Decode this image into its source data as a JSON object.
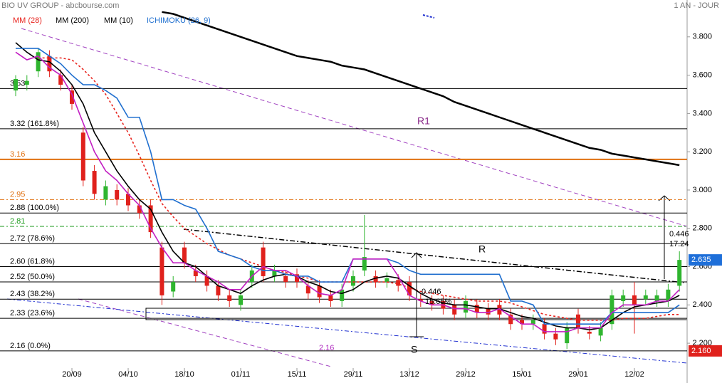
{
  "chart_data": {
    "type": "candlestick",
    "title": "BIO UV GROUP - abcbourse.com",
    "subtitle": "1 AN - JOUR",
    "categories": [
      null,
      null,
      null,
      null,
      null,
      "20/09",
      null,
      null,
      null,
      null,
      "04/10",
      null,
      null,
      null,
      null,
      "18/10",
      null,
      null,
      null,
      null,
      "01/11",
      null,
      null,
      null,
      null,
      "15/11",
      null,
      null,
      null,
      null,
      "29/11",
      null,
      null,
      null,
      null,
      "13/12",
      null,
      null,
      null,
      null,
      "29/12",
      null,
      null,
      null,
      null,
      "15/01",
      null,
      null,
      null,
      null,
      "29/01",
      null,
      null,
      null,
      null,
      "12/02",
      null,
      null,
      null,
      null
    ],
    "open": [
      3.52,
      3.55,
      3.62,
      3.7,
      3.6,
      3.52,
      3.3,
      3.1,
      2.95,
      3.0,
      2.98,
      2.92,
      2.92,
      2.7,
      2.47,
      2.7,
      2.58,
      2.55,
      2.5,
      2.45,
      2.4,
      2.52,
      2.7,
      2.55,
      2.55,
      2.56,
      2.5,
      2.5,
      2.45,
      2.42,
      2.5,
      2.58,
      2.55,
      2.52,
      2.53,
      2.52,
      2.43,
      2.42,
      2.42,
      2.4,
      2.36,
      2.4,
      2.38,
      2.4,
      2.35,
      2.32,
      2.3,
      2.3,
      2.25,
      2.2,
      2.35,
      2.26,
      2.24,
      2.3,
      2.42,
      2.45,
      2.43,
      2.42,
      2.42,
      2.5
    ],
    "high": [
      3.6,
      3.6,
      3.74,
      3.73,
      3.63,
      3.55,
      3.33,
      3.13,
      3.05,
      3.03,
      3.01,
      2.95,
      2.95,
      2.73,
      2.55,
      2.73,
      2.61,
      2.58,
      2.53,
      2.48,
      2.48,
      2.61,
      2.73,
      2.61,
      2.58,
      2.59,
      2.53,
      2.53,
      2.48,
      2.51,
      2.58,
      2.87,
      2.58,
      2.57,
      2.56,
      2.55,
      2.46,
      2.45,
      2.45,
      2.43,
      2.45,
      2.43,
      2.41,
      2.43,
      2.38,
      2.35,
      2.35,
      2.33,
      2.28,
      2.31,
      2.38,
      2.29,
      2.31,
      2.48,
      2.48,
      2.52,
      2.48,
      2.48,
      2.51,
      2.68
    ],
    "low": [
      3.49,
      3.52,
      3.59,
      3.59,
      3.52,
      3.42,
      3.02,
      2.95,
      2.92,
      2.92,
      2.89,
      2.85,
      2.75,
      2.4,
      2.44,
      2.59,
      2.52,
      2.47,
      2.42,
      2.39,
      2.37,
      2.49,
      2.52,
      2.52,
      2.49,
      2.49,
      2.43,
      2.41,
      2.39,
      2.39,
      2.47,
      2.55,
      2.49,
      2.49,
      2.47,
      2.42,
      2.39,
      2.37,
      2.35,
      2.32,
      2.33,
      2.33,
      2.32,
      2.32,
      2.27,
      2.27,
      2.27,
      2.22,
      2.19,
      2.17,
      2.25,
      2.22,
      2.21,
      2.27,
      2.39,
      2.25,
      2.4,
      2.39,
      2.39,
      2.47
    ],
    "close": [
      3.58,
      3.57,
      3.72,
      3.62,
      3.55,
      3.45,
      3.05,
      2.98,
      3.02,
      2.95,
      2.92,
      2.88,
      2.78,
      2.45,
      2.52,
      2.62,
      2.55,
      2.5,
      2.45,
      2.42,
      2.45,
      2.58,
      2.55,
      2.58,
      2.52,
      2.52,
      2.46,
      2.44,
      2.42,
      2.48,
      2.55,
      2.65,
      2.52,
      2.54,
      2.5,
      2.45,
      2.42,
      2.4,
      2.38,
      2.35,
      2.42,
      2.36,
      2.35,
      2.35,
      2.3,
      2.3,
      2.32,
      2.25,
      2.22,
      2.28,
      2.28,
      2.25,
      2.28,
      2.45,
      2.45,
      2.4,
      2.45,
      2.45,
      2.48,
      2.635
    ],
    "up_color": "#2fb52f",
    "down_color": "#e0211c",
    "series": [
      {
        "name": "MM (28)",
        "color": "#e8231d",
        "style": "dotted",
        "values": [
          null,
          null,
          3.69,
          3.69,
          3.69,
          3.68,
          3.63,
          3.57,
          3.5,
          3.4,
          3.3,
          3.18,
          3.05,
          2.93,
          2.86,
          2.8,
          2.76,
          2.72,
          2.69,
          2.66,
          2.64,
          2.62,
          2.6,
          2.58,
          2.57,
          2.55,
          2.54,
          2.52,
          2.52,
          2.52,
          2.52,
          2.52,
          2.52,
          2.52,
          2.51,
          2.49,
          2.47,
          2.46,
          2.45,
          2.44,
          2.43,
          2.42,
          2.42,
          2.42,
          2.41,
          2.39,
          2.37,
          2.35,
          2.34,
          2.33,
          2.32,
          2.32,
          2.32,
          2.32,
          2.33,
          2.33,
          2.33,
          2.34,
          2.35,
          2.35
        ]
      },
      {
        "name": "MM (200)",
        "color": "#000000",
        "style": "thick",
        "values": [
          null,
          null,
          null,
          null,
          null,
          null,
          null,
          null,
          null,
          null,
          null,
          null,
          null,
          3.93,
          3.92,
          3.9,
          3.88,
          3.86,
          3.84,
          3.82,
          3.8,
          3.78,
          3.76,
          3.74,
          3.72,
          3.7,
          3.69,
          3.68,
          3.67,
          3.65,
          3.64,
          3.63,
          3.61,
          3.59,
          3.57,
          3.55,
          3.53,
          3.51,
          3.49,
          3.46,
          3.44,
          3.42,
          3.4,
          3.38,
          3.36,
          3.34,
          3.32,
          3.3,
          3.28,
          3.26,
          3.24,
          3.22,
          3.21,
          3.19,
          3.18,
          3.17,
          3.16,
          3.15,
          3.14,
          3.13
        ]
      },
      {
        "name": "MM (10)",
        "color": "#000000",
        "style": "solid",
        "values": [
          3.77,
          3.72,
          3.68,
          3.67,
          3.62,
          3.55,
          3.45,
          3.3,
          3.2,
          3.1,
          3.02,
          2.95,
          2.9,
          2.78,
          2.68,
          2.62,
          2.6,
          2.55,
          2.5,
          2.48,
          2.46,
          2.5,
          2.53,
          2.55,
          2.56,
          2.55,
          2.52,
          2.5,
          2.47,
          2.46,
          2.48,
          2.52,
          2.54,
          2.55,
          2.54,
          2.5,
          2.46,
          2.43,
          2.41,
          2.4,
          2.4,
          2.39,
          2.38,
          2.38,
          2.36,
          2.34,
          2.33,
          2.31,
          2.29,
          2.28,
          2.28,
          2.27,
          2.28,
          2.32,
          2.36,
          2.39,
          2.4,
          2.41,
          2.42,
          2.45
        ]
      },
      {
        "name": "ICHIMOKU (26, 9)",
        "color": "#1f6fcf",
        "style": "solid",
        "values": [
          3.74,
          3.74,
          3.74,
          3.7,
          3.66,
          3.6,
          3.55,
          3.55,
          3.52,
          3.48,
          3.38,
          3.38,
          3.2,
          2.95,
          2.95,
          2.92,
          2.9,
          2.8,
          2.68,
          2.66,
          2.64,
          2.6,
          2.58,
          2.58,
          2.56,
          2.55,
          2.55,
          2.52,
          2.52,
          2.52,
          2.64,
          2.64,
          2.64,
          2.64,
          2.62,
          2.58,
          2.56,
          2.56,
          2.56,
          2.56,
          2.56,
          2.56,
          2.56,
          2.56,
          2.42,
          2.42,
          2.4,
          2.3,
          2.3,
          2.3,
          2.3,
          2.3,
          2.3,
          2.36,
          2.36,
          2.36,
          2.36,
          2.36,
          2.36,
          2.4
        ]
      },
      {
        "color": "#c21fc2",
        "style": "solid",
        "values": [
          3.72,
          3.68,
          3.7,
          3.64,
          3.6,
          3.5,
          3.35,
          3.2,
          3.1,
          3.05,
          2.98,
          2.92,
          2.8,
          2.7,
          2.62,
          2.62,
          2.58,
          2.55,
          2.52,
          2.48,
          2.48,
          2.55,
          2.6,
          2.58,
          2.58,
          2.55,
          2.5,
          2.46,
          2.45,
          2.48,
          2.64,
          2.64,
          2.64,
          2.64,
          2.55,
          2.45,
          2.42,
          2.4,
          2.4,
          2.38,
          2.38,
          2.36,
          2.36,
          2.38,
          2.34,
          2.3,
          2.3,
          2.26,
          2.26,
          2.26,
          2.28,
          2.28,
          2.28,
          2.36,
          2.4,
          2.4,
          2.4,
          2.42,
          2.42,
          2.48
        ]
      }
    ],
    "ylim": [
      2.1,
      4.0
    ],
    "yticks": [
      {
        "value": 2.2,
        "label": "2.200"
      },
      {
        "value": 2.4,
        "label": "2.400"
      },
      {
        "value": 2.6,
        "label": "2.600"
      },
      {
        "value": 2.8,
        "label": "2.800"
      },
      {
        "value": 3.0,
        "label": "3.000"
      },
      {
        "value": 3.2,
        "label": "3.200"
      },
      {
        "value": 3.4,
        "label": "3.400"
      },
      {
        "value": 3.6,
        "label": "3.600"
      },
      {
        "value": 3.8,
        "label": "3.800"
      }
    ],
    "levels": [
      {
        "value": 3.53,
        "label": "3.53",
        "color": "#000000",
        "style": "solid"
      },
      {
        "value": 3.32,
        "label": "3.32  (161.8%)",
        "color": "#000000",
        "style": "solid"
      },
      {
        "value": 3.16,
        "label": "3.16",
        "color": "#e07010",
        "style": "thick"
      },
      {
        "value": 2.95,
        "label": "2.95",
        "color": "#e07010",
        "style": "dashdot"
      },
      {
        "value": 2.88,
        "label": "2.88  (100.0%)",
        "color": "#000000",
        "style": "solid"
      },
      {
        "value": 2.81,
        "label": "2.81",
        "color": "#1a9a1a",
        "style": "dashdot"
      },
      {
        "value": 2.72,
        "label": "2.72  (78.6%)",
        "color": "#000000",
        "style": "solid"
      },
      {
        "value": 2.6,
        "label": "2.60  (61.8%)",
        "color": "#000000",
        "style": "solid"
      },
      {
        "value": 2.52,
        "label": "2.52  (50.0%)",
        "color": "#000000",
        "style": "solid"
      },
      {
        "value": 2.43,
        "label": "2.43  (38.2%)",
        "color": "#000000",
        "style": "solid"
      },
      {
        "value": 2.33,
        "label": "2.33  (23.6%)",
        "color": "#000000",
        "style": "solid"
      },
      {
        "value": 2.16,
        "label": "2.16  (0.0%)",
        "color": "#000000",
        "style": "solid"
      }
    ],
    "price_tags": [
      {
        "value": 2.635,
        "label": "2.635",
        "color": "#1e6fd9"
      },
      {
        "value": 2.16,
        "label": "2.160",
        "color": "#e0211c"
      }
    ],
    "annotations": [
      {
        "text": "R1",
        "color": "#8a2a8a"
      },
      {
        "text": "R",
        "color": "#000000"
      },
      {
        "text": "S",
        "color": "#000000"
      },
      {
        "text": "2.16",
        "color": "#b030c0"
      },
      {
        "text": "0.446",
        "color": "#000000"
      },
      {
        "text": "17.24",
        "color": "#000000"
      },
      {
        "text": "0.446",
        "color": "#000000"
      },
      {
        "text": "15.65%",
        "color": "#000000"
      }
    ]
  }
}
